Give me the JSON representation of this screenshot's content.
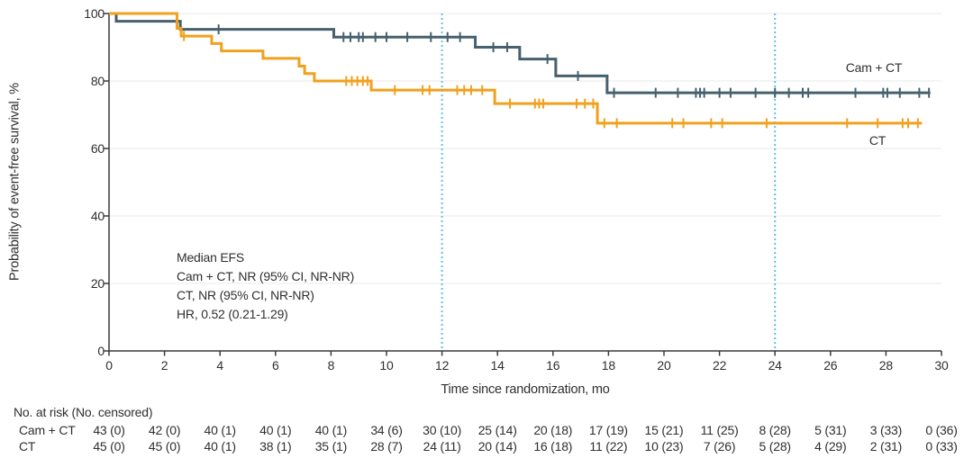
{
  "chart_data": {
    "type": "line",
    "subtype": "kaplan-meier-step",
    "xlabel": "Time since randomization, mo",
    "ylabel": "Probability of event-free survival, %",
    "xlim": [
      0,
      30
    ],
    "ylim": [
      0,
      100
    ],
    "xticks": [
      0,
      2,
      4,
      6,
      8,
      10,
      12,
      14,
      16,
      18,
      20,
      22,
      24,
      26,
      28,
      30
    ],
    "yticks": [
      0,
      20,
      40,
      60,
      80,
      100
    ],
    "grid_y": [
      20,
      40,
      60,
      80,
      100
    ],
    "grid_color": "#e8e8e8",
    "axis_color": "#3a3a3a",
    "reference_lines_x": [
      12,
      24
    ],
    "reference_line_color": "#5fc0e8",
    "legend_position": "inline-right",
    "series": [
      {
        "name": "Cam + CT",
        "color": "#46606e",
        "steps": [
          [
            0,
            100
          ],
          [
            0.26,
            97.7
          ],
          [
            2.57,
            95.3
          ],
          [
            8.1,
            93
          ],
          [
            13.2,
            90
          ],
          [
            14.8,
            86.5
          ],
          [
            16.1,
            81.5
          ],
          [
            17.95,
            76.5
          ]
        ],
        "end_x": 29.6,
        "censors": [
          [
            3.95,
            95.3
          ],
          [
            8.45,
            93
          ],
          [
            8.7,
            93
          ],
          [
            9.0,
            93
          ],
          [
            9.15,
            93
          ],
          [
            9.6,
            93
          ],
          [
            10.0,
            93
          ],
          [
            10.75,
            93
          ],
          [
            11.6,
            93
          ],
          [
            12.2,
            93
          ],
          [
            12.65,
            93
          ],
          [
            13.85,
            90
          ],
          [
            14.35,
            90
          ],
          [
            15.8,
            86.5
          ],
          [
            16.9,
            81.5
          ],
          [
            18.2,
            76.5
          ],
          [
            19.7,
            76.5
          ],
          [
            20.5,
            76.5
          ],
          [
            21.15,
            76.5
          ],
          [
            21.3,
            76.5
          ],
          [
            21.45,
            76.5
          ],
          [
            22.0,
            76.5
          ],
          [
            22.4,
            76.5
          ],
          [
            23.3,
            76.5
          ],
          [
            24.0,
            76.5
          ],
          [
            24.5,
            76.5
          ],
          [
            25.0,
            76.5
          ],
          [
            25.2,
            76.5
          ],
          [
            26.9,
            76.5
          ],
          [
            27.9,
            76.5
          ],
          [
            28.05,
            76.5
          ],
          [
            28.5,
            76.5
          ],
          [
            29.2,
            76.5
          ],
          [
            29.55,
            76.5
          ]
        ]
      },
      {
        "name": "CT",
        "color": "#f0a11e",
        "steps": [
          [
            0,
            100
          ],
          [
            2.45,
            95.6
          ],
          [
            2.6,
            93.3
          ],
          [
            3.7,
            91.1
          ],
          [
            4.05,
            88.9
          ],
          [
            5.55,
            86.7
          ],
          [
            6.85,
            84.4
          ],
          [
            7.05,
            82.2
          ],
          [
            7.4,
            80
          ],
          [
            9.45,
            77.3
          ],
          [
            13.9,
            73.3
          ],
          [
            17.6,
            67.5
          ]
        ],
        "end_x": 29.3,
        "censors": [
          [
            2.7,
            93.3
          ],
          [
            8.55,
            80
          ],
          [
            8.75,
            80
          ],
          [
            8.95,
            80
          ],
          [
            9.15,
            80
          ],
          [
            9.32,
            80
          ],
          [
            10.3,
            77.3
          ],
          [
            11.3,
            77.3
          ],
          [
            11.55,
            77.3
          ],
          [
            12.55,
            77.3
          ],
          [
            12.8,
            77.3
          ],
          [
            13.05,
            77.3
          ],
          [
            13.45,
            77.3
          ],
          [
            14.45,
            73.3
          ],
          [
            15.35,
            73.3
          ],
          [
            15.5,
            73.3
          ],
          [
            15.65,
            73.3
          ],
          [
            16.85,
            73.3
          ],
          [
            17.15,
            73.3
          ],
          [
            17.45,
            73.3
          ],
          [
            17.85,
            67.5
          ],
          [
            18.3,
            67.5
          ],
          [
            20.3,
            67.5
          ],
          [
            20.7,
            67.5
          ],
          [
            21.7,
            67.5
          ],
          [
            22.1,
            67.5
          ],
          [
            23.7,
            67.5
          ],
          [
            26.6,
            67.5
          ],
          [
            27.7,
            67.5
          ],
          [
            28.6,
            67.5
          ],
          [
            28.8,
            67.5
          ],
          [
            29.15,
            67.5
          ]
        ]
      }
    ],
    "annotation": {
      "lines": [
        "Median EFS",
        "Cam + CT, NR (95% CI, NR-NR)",
        "CT, NR (95% CI, NR-NR)",
        "HR, 0.52 (0.21-1.29)"
      ]
    }
  },
  "risk_table": {
    "header": "No. at risk (No. censored)",
    "times": [
      0,
      2,
      4,
      6,
      8,
      10,
      12,
      14,
      16,
      18,
      20,
      22,
      24,
      26,
      28,
      30
    ],
    "rows": [
      {
        "label": "Cam + CT",
        "values": [
          "43 (0)",
          "42 (0)",
          "40 (1)",
          "40 (1)",
          "40 (1)",
          "34 (6)",
          "30 (10)",
          "25 (14)",
          "20 (18)",
          "17 (19)",
          "15 (21)",
          "11 (25)",
          "8 (28)",
          "5 (31)",
          "3 (33)",
          "0 (36)"
        ]
      },
      {
        "label": "CT",
        "values": [
          "45 (0)",
          "45 (0)",
          "40 (1)",
          "38 (1)",
          "35 (1)",
          "28 (7)",
          "24 (11)",
          "20 (14)",
          "16 (18)",
          "11 (22)",
          "10 (23)",
          "7 (26)",
          "5 (28)",
          "4 (29)",
          "2 (31)",
          "0 (33)"
        ]
      }
    ]
  }
}
